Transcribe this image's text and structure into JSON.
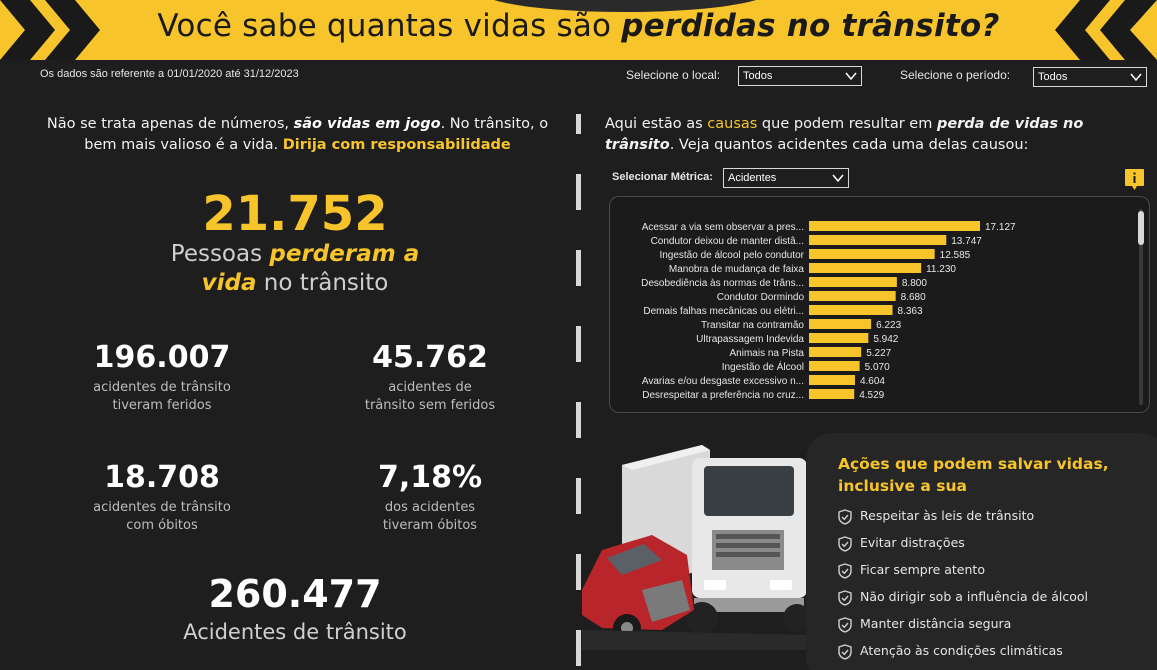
{
  "header": {
    "title_prefix": "Você sabe quantas vidas são ",
    "title_emphasis": "perdidas no trânsito?"
  },
  "filters": {
    "date_note": "Os dados são referente a 01/01/2020 até 31/12/2023",
    "local_label": "Selecione o local:",
    "local_value": "Todos",
    "period_label": "Selecione o período:",
    "period_value": "Todos"
  },
  "intro": {
    "part1": "Não se trata apenas de números, ",
    "emphasis": "são vidas em jogo",
    "part2": ". No trânsito, o bem mais valioso é a vida. ",
    "highlight": "Dirija com responsabilidade"
  },
  "lost": {
    "value": "21.752",
    "text1": "Pessoas ",
    "emphasis1": "perderam a",
    "emphasis2": "vida",
    "text2": " no trânsito"
  },
  "stats": {
    "injured": {
      "value": "196.007",
      "line1": "acidentes de trânsito",
      "line2": "tiveram feridos"
    },
    "no_injured": {
      "value": "45.762",
      "line1": "acidentes de",
      "line2": "trânsito sem feridos"
    },
    "deaths": {
      "value": "18.708",
      "line1": "acidentes de trânsito",
      "line2": "com óbitos"
    },
    "deaths_pct": {
      "value": "7,18%",
      "line1": "dos acidentes",
      "line2": "tiveram óbitos"
    }
  },
  "total": {
    "value": "260.477",
    "label": "Acidentes de trânsito"
  },
  "causes": {
    "intro_part1": "Aqui estão as ",
    "intro_highlight": "causas",
    "intro_part2": " que podem resultar em ",
    "intro_emphasis": "perda de vidas no trânsito",
    "intro_part3": ". Veja quantos acidentes cada uma delas causou:",
    "metric_label": "Selecionar Métrica:",
    "metric_value": "Acidentes"
  },
  "chart_data": {
    "type": "bar",
    "orientation": "horizontal",
    "categories": [
      "Acessar a via sem observar a pres...",
      "Condutor deixou de manter distâ...",
      "Ingestão de álcool pelo condutor",
      "Manobra de mudança de faixa",
      "Desobediência às normas de trâns...",
      "Condutor Dormindo",
      "Demais falhas mecânicas ou elétri...",
      "Transitar na contramão",
      "Ultrapassagem Indevida",
      "Animais na Pista",
      "Ingestão de Álcool",
      "Avarias e/ou desgaste excessivo n...",
      "Desrespeitar a preferência no cruz..."
    ],
    "values": [
      17127,
      13747,
      12585,
      11230,
      8800,
      8680,
      8363,
      6223,
      5942,
      5227,
      5070,
      4604,
      4529
    ],
    "value_labels": [
      "17.127",
      "13.747",
      "12.585",
      "11.230",
      "8.800",
      "8.680",
      "8.363",
      "6.223",
      "5.942",
      "5.227",
      "5.070",
      "4.604",
      "4.529"
    ],
    "color": "#f7c52b",
    "xlim": [
      0,
      17127
    ],
    "grid": false,
    "legend": "none"
  },
  "actions": {
    "title": "Ações que podem salvar vidas, inclusive a sua",
    "items": [
      "Respeitar às leis de trânsito",
      "Evitar distrações",
      "Ficar sempre atento",
      "Não dirigir sob a influência de álcool",
      "Manter distância segura",
      "Atenção às condições climáticas"
    ]
  },
  "colors": {
    "accent": "#f7c52b",
    "background": "#1e1e1e",
    "card": "#262626"
  }
}
